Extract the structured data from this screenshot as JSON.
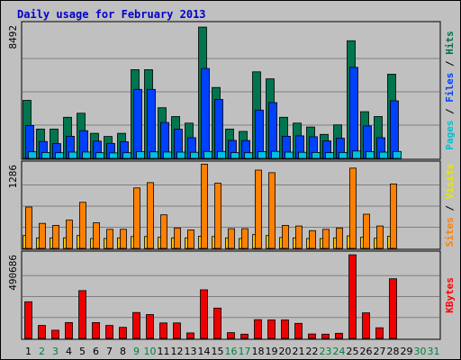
{
  "chart_data": {
    "type": "bar",
    "title": "Daily usage for February 2013",
    "days": [
      {
        "label": "1",
        "weekend": false
      },
      {
        "label": "2",
        "weekend": true
      },
      {
        "label": "3",
        "weekend": true
      },
      {
        "label": "4",
        "weekend": false
      },
      {
        "label": "5",
        "weekend": false
      },
      {
        "label": "6",
        "weekend": false
      },
      {
        "label": "7",
        "weekend": false
      },
      {
        "label": "8",
        "weekend": false
      },
      {
        "label": "9",
        "weekend": true
      },
      {
        "label": "10",
        "weekend": true
      },
      {
        "label": "11",
        "weekend": false
      },
      {
        "label": "12",
        "weekend": false
      },
      {
        "label": "13",
        "weekend": false
      },
      {
        "label": "14",
        "weekend": false
      },
      {
        "label": "15",
        "weekend": false
      },
      {
        "label": "16",
        "weekend": true
      },
      {
        "label": "17",
        "weekend": true
      },
      {
        "label": "18",
        "weekend": false
      },
      {
        "label": "19",
        "weekend": false
      },
      {
        "label": "20",
        "weekend": false
      },
      {
        "label": "21",
        "weekend": false
      },
      {
        "label": "22",
        "weekend": false
      },
      {
        "label": "23",
        "weekend": true
      },
      {
        "label": "24",
        "weekend": true
      },
      {
        "label": "25",
        "weekend": false
      },
      {
        "label": "26",
        "weekend": false
      },
      {
        "label": "27",
        "weekend": false
      },
      {
        "label": "28",
        "weekend": false
      },
      {
        "label": "29",
        "weekend": false
      },
      {
        "label": "30",
        "weekend": true
      },
      {
        "label": "31",
        "weekend": true
      }
    ],
    "panels": [
      {
        "ymax_label": "8492",
        "ymax": 8492,
        "side_labels": [
          "Pages",
          "Files",
          "Hits"
        ],
        "side_colors": [
          "#00c0d0",
          "#0040ff",
          "#007050"
        ],
        "series": [
          {
            "name": "Hits",
            "color": "#007550",
            "values": [
              3700,
              1870,
              1870,
              2620,
              2880,
              1600,
              1400,
              1600,
              5660,
              5660,
              3230,
              2670,
              2250,
              8370,
              4520,
              1870,
              1720,
              5520,
              5070,
              2620,
              2250,
              2000,
              1530,
              2140,
              7500,
              2980,
              2670,
              5370,
              0,
              0,
              0
            ]
          },
          {
            "name": "Files",
            "color": "#0040ff",
            "values": [
              2100,
              1080,
              940,
              1410,
              1770,
              1100,
              960,
              1060,
              4400,
              4400,
              2290,
              1860,
              1320,
              5730,
              3760,
              1150,
              1140,
              3080,
              3560,
              1410,
              1440,
              1380,
              1120,
              1290,
              5800,
              2070,
              1320,
              3670,
              0,
              0,
              0
            ]
          },
          {
            "name": "Pages",
            "color": "#00c0e0",
            "values": [
              420,
              380,
              360,
              400,
              410,
              360,
              350,
              360,
              430,
              420,
              410,
              400,
              390,
              440,
              440,
              370,
              360,
              430,
              450,
              400,
              390,
              380,
              370,
              380,
              470,
              430,
              400,
              440,
              0,
              0,
              0
            ]
          }
        ]
      },
      {
        "ymax_label": "1286",
        "ymax": 1286,
        "side_labels": [
          "Sites",
          "Visits"
        ],
        "side_colors": [
          "#ff8000",
          "#e8e800"
        ],
        "series": [
          {
            "name": "Visits",
            "color": "#ffc000",
            "values": [
              195,
              160,
              160,
              160,
              195,
              150,
              150,
              160,
              180,
              180,
              170,
              160,
              160,
              185,
              180,
              160,
              150,
              210,
              195,
              165,
              160,
              150,
              150,
              160,
              190,
              170,
              155,
              185,
              0,
              0,
              0
            ]
          },
          {
            "name": "Sites",
            "color": "#ff8000",
            "values": [
              630,
              380,
              350,
              430,
              700,
              390,
              290,
              290,
              920,
              1000,
              510,
              310,
              280,
              1280,
              990,
              300,
              300,
              1190,
              1150,
              350,
              340,
              270,
              290,
              310,
              1220,
              520,
              340,
              980,
              0,
              0,
              0
            ]
          }
        ]
      },
      {
        "ymax_label": "490686",
        "ymax": 490686,
        "side_labels": [
          "KBytes"
        ],
        "side_colors": [
          "#ff0000"
        ],
        "series": [
          {
            "name": "KBytes",
            "color": "#ee0000",
            "values": [
              215000,
              76000,
              48000,
              93000,
              280000,
              93000,
              76000,
              65000,
              152000,
              140000,
              91000,
              91000,
              32000,
              285000,
              178000,
              34000,
              25000,
              110000,
              108000,
              108000,
              88000,
              26000,
              25000,
              30000,
              490000,
              150000,
              62000,
              350000,
              0,
              0,
              0
            ]
          }
        ]
      }
    ]
  }
}
